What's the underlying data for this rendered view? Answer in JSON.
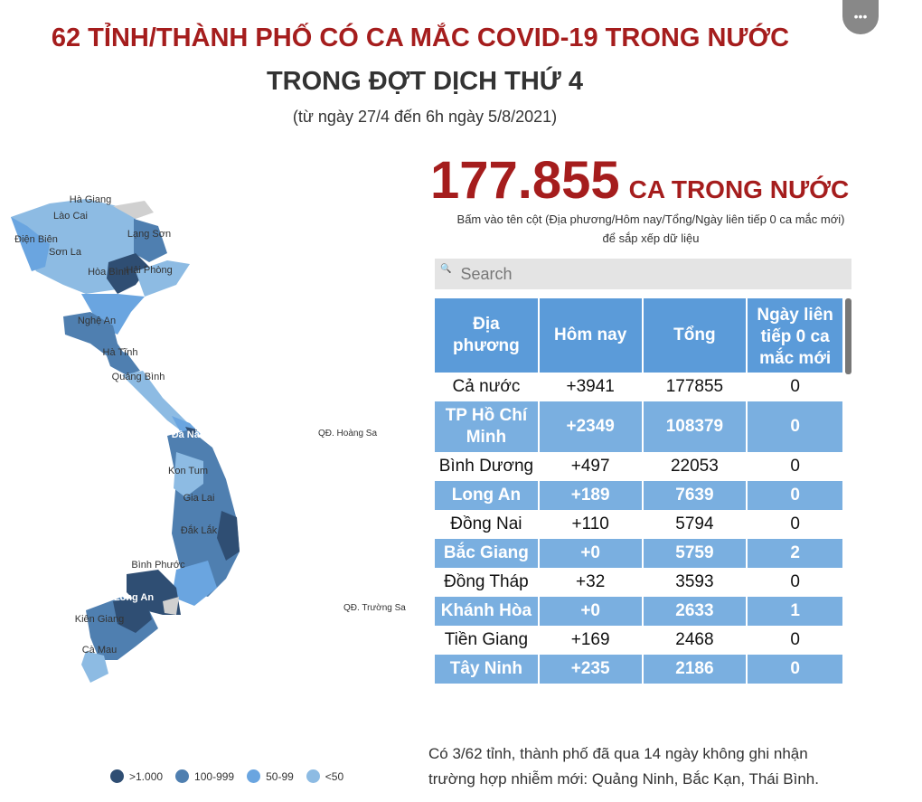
{
  "header": {
    "title_line1": "62 TỈNH/THÀNH PHỐ CÓ CA MẮC COVID-19 TRONG NƯỚC",
    "title_line2": "TRONG ĐỢT DỊCH THỨ 4",
    "subtitle": "(từ ngày 27/4 đến 6h ngày 5/8/2021)"
  },
  "summary": {
    "total": "177.855",
    "unit": "CA TRONG NƯỚC",
    "hint": "Bấm vào tên cột (Địa phương/Hôm nay/Tổng/Ngày liên tiếp 0 ca mắc mới) để sắp xếp dữ liệu"
  },
  "search": {
    "placeholder": "Search",
    "icon": "search-icon"
  },
  "table": {
    "headers": [
      "Địa phương",
      "Hôm nay",
      "Tổng",
      "Ngày liên tiếp 0 ca mắc mới"
    ],
    "rows": [
      [
        "Cả nước",
        "+3941",
        "177855",
        "0"
      ],
      [
        "TP Hồ Chí Minh",
        "+2349",
        "108379",
        "0"
      ],
      [
        "Bình Dương",
        "+497",
        "22053",
        "0"
      ],
      [
        "Long An",
        "+189",
        "7639",
        "0"
      ],
      [
        "Đồng Nai",
        "+110",
        "5794",
        "0"
      ],
      [
        "Bắc Giang",
        "+0",
        "5759",
        "2"
      ],
      [
        "Đồng Tháp",
        "+32",
        "3593",
        "0"
      ],
      [
        "Khánh Hòa",
        "+0",
        "2633",
        "1"
      ],
      [
        "Tiền Giang",
        "+169",
        "2468",
        "0"
      ],
      [
        "Tây Ninh",
        "+235",
        "2186",
        "0"
      ]
    ]
  },
  "footnote": "Có 3/62 tỉnh, thành phố đã qua 14 ngày không ghi nhận trường hợp nhiễm mới: Quảng Ninh, Bắc Kạn, Thái Bình.",
  "map": {
    "labels": [
      "Hà Giang",
      "Lào Cai",
      "Điện Biên",
      "Sơn La",
      "Lạng Sơn",
      "Hòa Bình",
      "Hải Phòng",
      "Nghệ An",
      "Hà Tĩnh",
      "Quảng Bình",
      "Đà Nẵng",
      "Kon Tum",
      "Gia Lai",
      "Đắk Lắk",
      "Bình Phước",
      "Long An",
      "Kiên Giang",
      "Cà Mau",
      "QĐ. Hoàng Sa",
      "QĐ. Trường Sa"
    ],
    "legend": [
      {
        "label": ">1.000",
        "color": "#2f4e73"
      },
      {
        "label": "100-999",
        "color": "#4f7fb0"
      },
      {
        "label": "50-99",
        "color": "#6aa5e0"
      },
      {
        "label": "<50",
        "color": "#8dbbe3"
      }
    ]
  },
  "colors": {
    "title_red": "#a51d1d",
    "header_blue": "#5b9bd9",
    "row_blue": "#7aafe0"
  }
}
